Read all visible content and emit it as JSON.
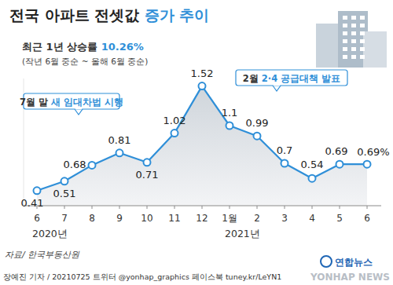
{
  "chart_data": {
    "type": "line",
    "title": "전국 아파트 전셋값 증가 추이",
    "title_highlight": "증가 추이",
    "subtitle": "최근 1년 상승률 10.26%",
    "subtitle_highlight": "10.26%",
    "note": "(작년 6월 중순 ~ 올해 6월 중순)",
    "annotations": [
      {
        "text": "7월 말 새 임대차법 시행",
        "highlight": "새 임대차법 시행"
      },
      {
        "text": "2월 2·4 공급대책 발표",
        "highlight": "2·4 공급대책 발표"
      }
    ],
    "categories": [
      "6",
      "7",
      "8",
      "9",
      "10",
      "11",
      "12",
      "1월",
      "2",
      "3",
      "4",
      "5",
      "6"
    ],
    "values": [
      0.41,
      0.51,
      0.68,
      0.81,
      0.71,
      1.02,
      1.52,
      1.1,
      0.99,
      0.7,
      0.54,
      0.69,
      0.69
    ],
    "value_labels": [
      "0.41",
      "0.51",
      "0.68",
      "0.81",
      "0.71",
      "1.02",
      "1.52",
      "1.1",
      "0.99",
      "0.7",
      "0.54",
      "0.69",
      "0.69%"
    ],
    "x_groups": [
      {
        "label": "2020년",
        "start": 0
      },
      {
        "label": "2021년",
        "start": 7
      }
    ],
    "color": "#2f8fd8",
    "ylim": [
      0.25,
      1.6
    ],
    "data_labels": true,
    "tick_labels": "x",
    "marker": "circle",
    "source": "자료/ 한국부동산원",
    "credit": "장예진 기자 / 20210725 트위터 @yonhap_graphics 페이스북 tuney.kr/LeYN1",
    "logo": "연합뉴스",
    "watermark": "YONHAP NEWS"
  }
}
